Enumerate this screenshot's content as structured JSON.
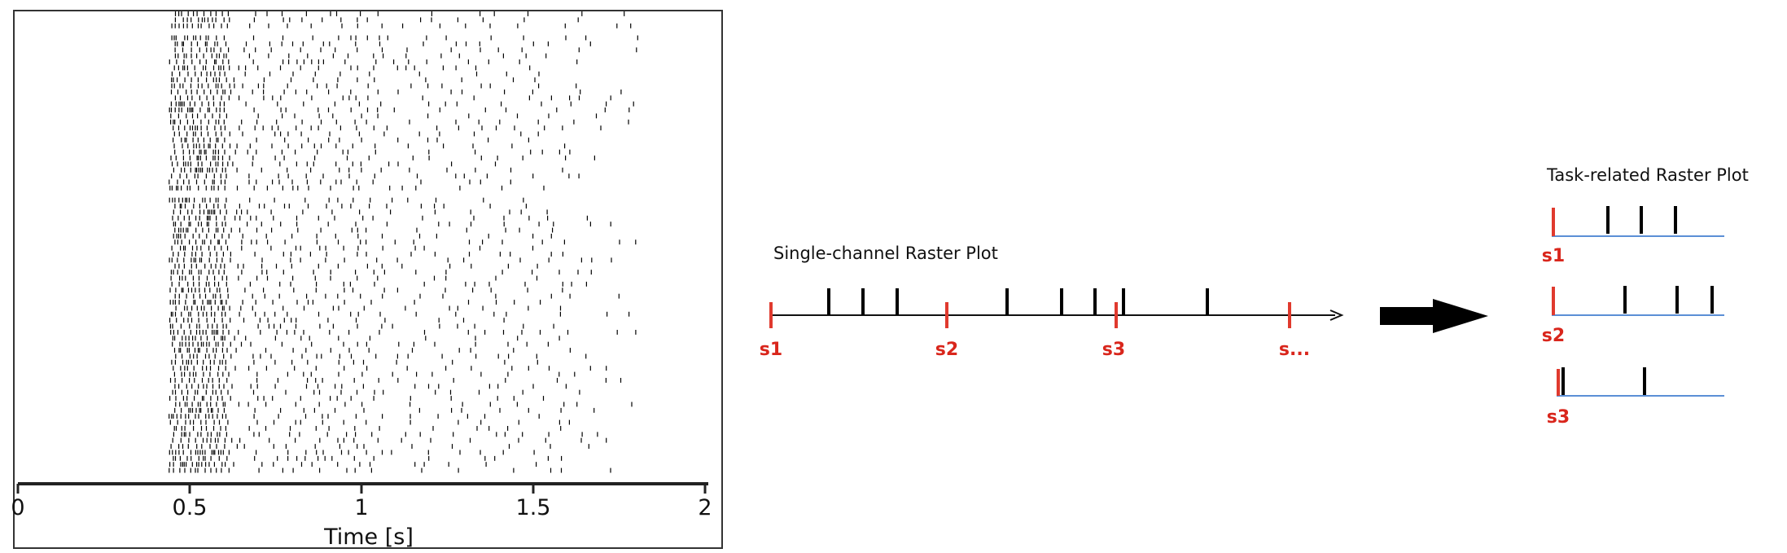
{
  "raster_plot": {
    "xlabel": "Time [s]",
    "x_ticks": [
      "0",
      "0.5",
      "1",
      "1.5",
      "2"
    ],
    "x_range": [
      0,
      2
    ],
    "trials": 77,
    "spike_onset_s": 0.44,
    "spike_offset_s": 1.85,
    "spike_color": "#000000"
  },
  "single_channel": {
    "title": "Single-channel Raster Plot",
    "stimulus_labels": [
      "s1",
      "s2",
      "s3",
      "s..."
    ],
    "stimulus_color": "#e03a2e",
    "spike_color": "#000000"
  },
  "arrow": {
    "direction": "right",
    "color": "#000000"
  },
  "task_related": {
    "title": "Task-related Raster Plot",
    "rows": [
      {
        "label": "s1",
        "spike_count": 3
      },
      {
        "label": "s2",
        "spike_count": 3
      },
      {
        "label": "s3",
        "spike_count": 2
      }
    ],
    "baseline_color": "#5b8fd6",
    "stimulus_color": "#e03a2e",
    "spike_color": "#000000"
  }
}
